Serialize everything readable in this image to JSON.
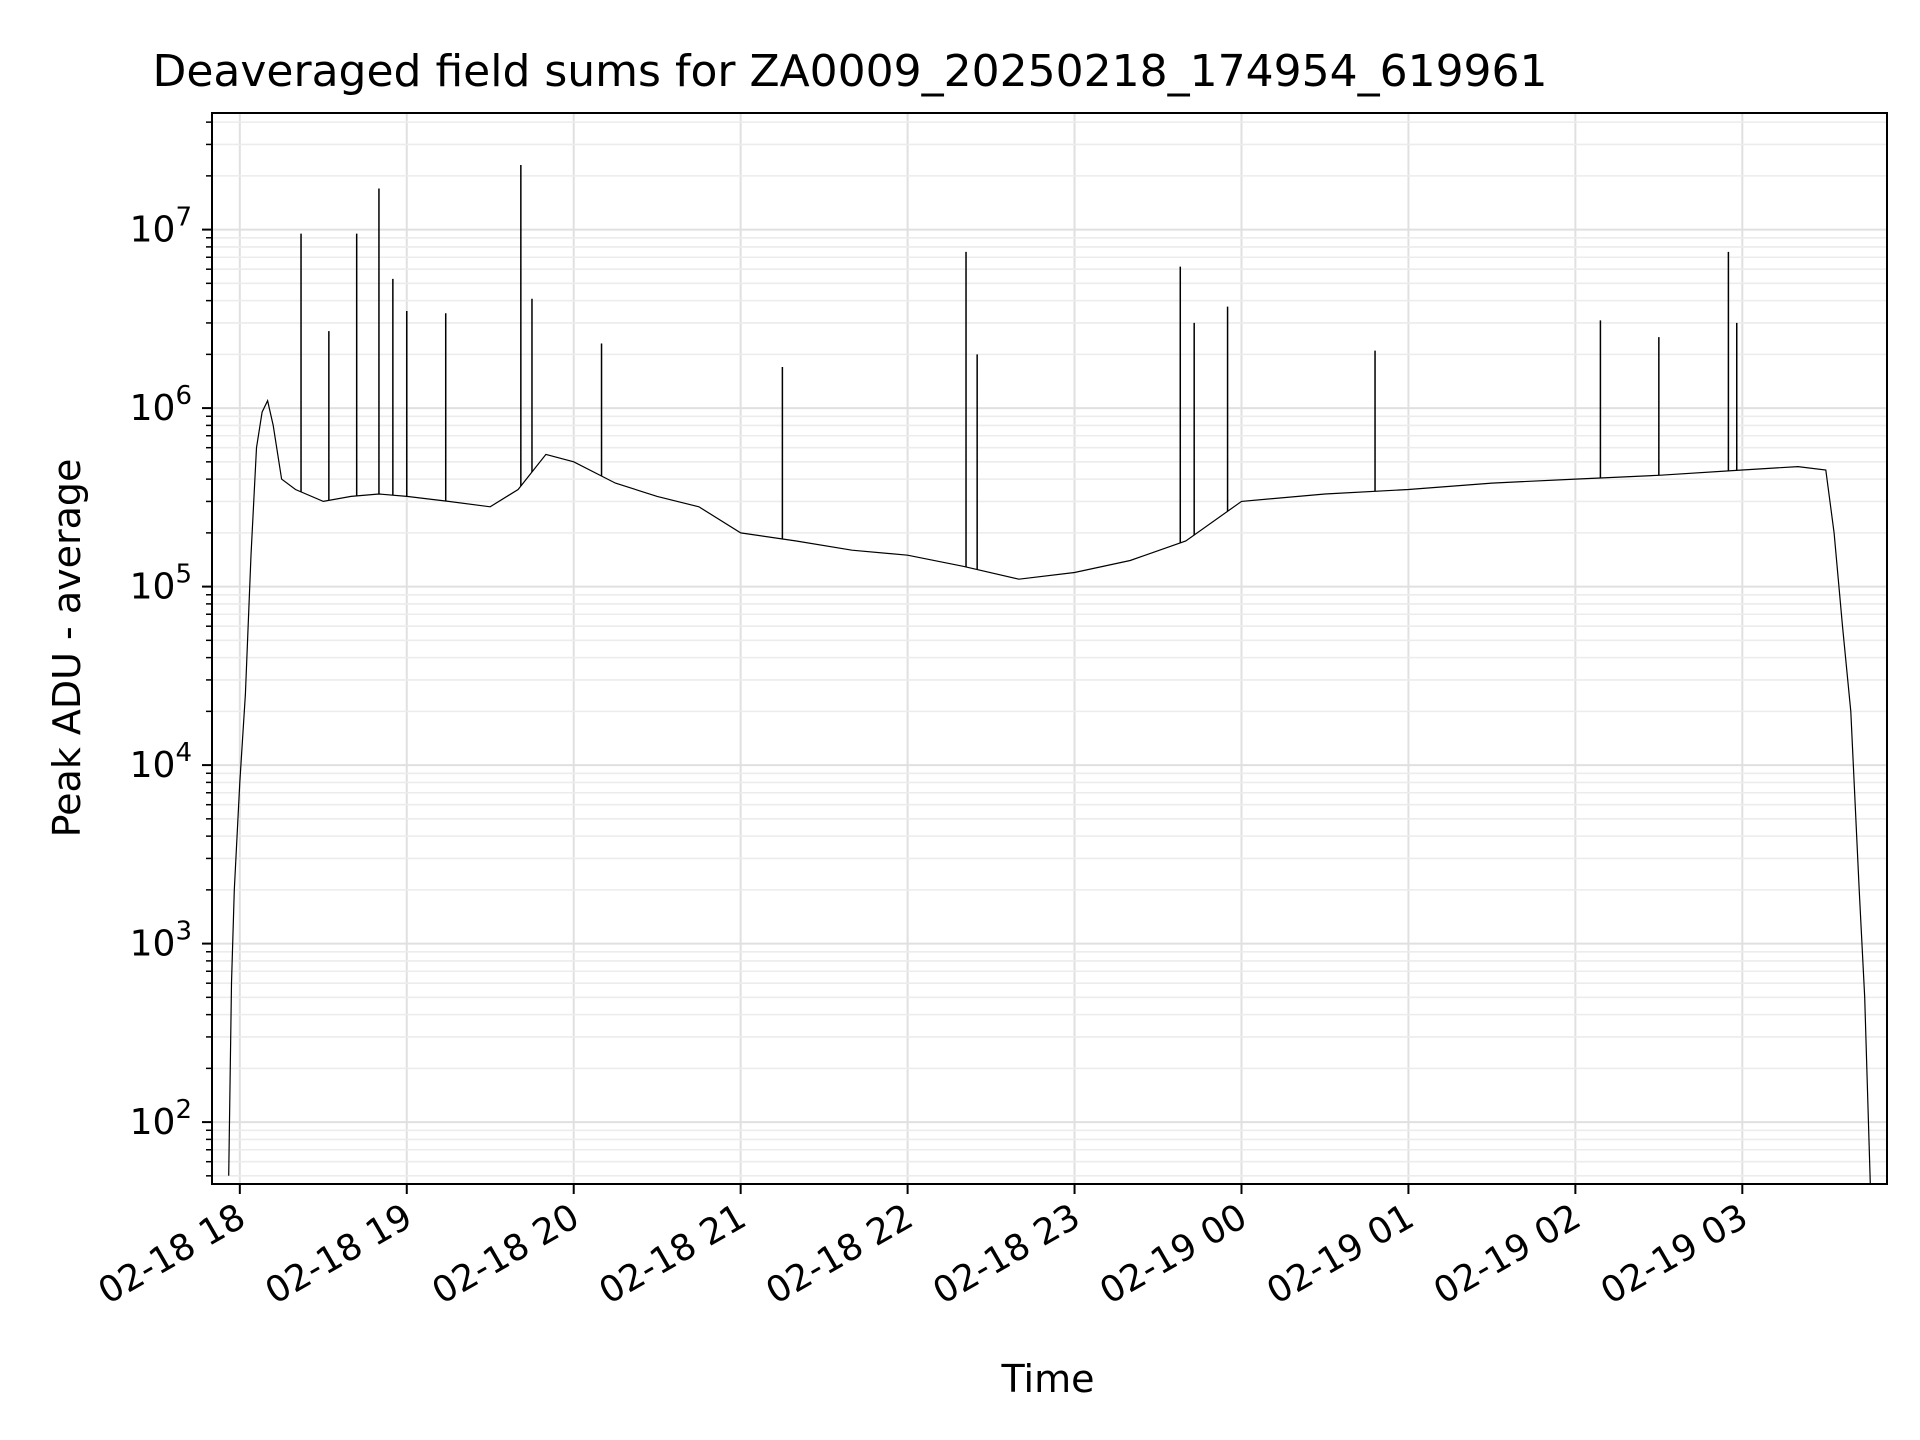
{
  "chart_data": {
    "type": "line",
    "title": "Deaveraged field sums for ZA0009_20250218_174954_619961",
    "xlabel": "Time",
    "ylabel": "Peak ADU - average",
    "yscale": "log",
    "ylim": [
      45,
      45000000
    ],
    "xlim": [
      "2025-02-18 17:50",
      "2025-02-19 03:52"
    ],
    "grid": "major and minor, light gray",
    "line_color": "#000000",
    "x_ticks": [
      {
        "label": "02-18 18",
        "time": "2025-02-18 18:00"
      },
      {
        "label": "02-18 19",
        "time": "2025-02-18 19:00"
      },
      {
        "label": "02-18 20",
        "time": "2025-02-18 20:00"
      },
      {
        "label": "02-18 21",
        "time": "2025-02-18 21:00"
      },
      {
        "label": "02-18 22",
        "time": "2025-02-18 22:00"
      },
      {
        "label": "02-18 23",
        "time": "2025-02-18 23:00"
      },
      {
        "label": "02-19 00",
        "time": "2025-02-19 00:00"
      },
      {
        "label": "02-19 01",
        "time": "2025-02-19 01:00"
      },
      {
        "label": "02-19 02",
        "time": "2025-02-19 02:00"
      },
      {
        "label": "02-19 03",
        "time": "2025-02-19 03:00"
      }
    ],
    "y_ticks": [
      {
        "base": "10",
        "exp": "2",
        "value": 100
      },
      {
        "base": "10",
        "exp": "3",
        "value": 1000
      },
      {
        "base": "10",
        "exp": "4",
        "value": 10000
      },
      {
        "base": "10",
        "exp": "5",
        "value": 100000
      },
      {
        "base": "10",
        "exp": "6",
        "value": 1000000
      },
      {
        "base": "10",
        "exp": "7",
        "value": 10000000
      }
    ],
    "series": [
      {
        "x": [
          "2025-02-18 17:56",
          "2025-02-18 17:57",
          "2025-02-18 17:58",
          "2025-02-18 18:00",
          "2025-02-18 18:02",
          "2025-02-18 18:04",
          "2025-02-18 18:06",
          "2025-02-18 18:08",
          "2025-02-18 18:10",
          "2025-02-18 18:12",
          "2025-02-18 18:15",
          "2025-02-18 18:20",
          "2025-02-18 18:30",
          "2025-02-18 18:40",
          "2025-02-18 18:50",
          "2025-02-18 19:00",
          "2025-02-18 19:15",
          "2025-02-18 19:30",
          "2025-02-18 19:40",
          "2025-02-18 19:50",
          "2025-02-18 20:00",
          "2025-02-18 20:15",
          "2025-02-18 20:30",
          "2025-02-18 20:45",
          "2025-02-18 21:00",
          "2025-02-18 21:20",
          "2025-02-18 21:40",
          "2025-02-18 22:00",
          "2025-02-18 22:20",
          "2025-02-18 22:40",
          "2025-02-18 23:00",
          "2025-02-18 23:20",
          "2025-02-18 23:40",
          "2025-02-19 00:00",
          "2025-02-19 00:30",
          "2025-02-19 01:00",
          "2025-02-19 01:30",
          "2025-02-19 02:00",
          "2025-02-19 02:30",
          "2025-02-19 03:00",
          "2025-02-19 03:20",
          "2025-02-19 03:30",
          "2025-02-19 03:33",
          "2025-02-19 03:36",
          "2025-02-19 03:39",
          "2025-02-19 03:42",
          "2025-02-19 03:44",
          "2025-02-19 03:46"
        ],
        "values": [
          50,
          600,
          2000,
          8000,
          25000,
          150000,
          600000,
          950000,
          1100000,
          800000,
          400000,
          350000,
          300000,
          320000,
          330000,
          320000,
          300000,
          280000,
          350000,
          550000,
          500000,
          380000,
          320000,
          280000,
          200000,
          180000,
          160000,
          150000,
          130000,
          110000,
          120000,
          140000,
          180000,
          300000,
          330000,
          350000,
          380000,
          400000,
          420000,
          450000,
          470000,
          450000,
          200000,
          60000,
          20000,
          2000,
          500,
          45
        ]
      }
    ],
    "spikes": [
      {
        "x": "2025-02-18 18:22",
        "value": 9500000
      },
      {
        "x": "2025-02-18 18:32",
        "value": 2700000
      },
      {
        "x": "2025-02-18 18:42",
        "value": 9500000
      },
      {
        "x": "2025-02-18 18:50",
        "value": 17000000
      },
      {
        "x": "2025-02-18 18:55",
        "value": 5300000
      },
      {
        "x": "2025-02-18 19:00",
        "value": 3500000
      },
      {
        "x": "2025-02-18 19:14",
        "value": 3400000
      },
      {
        "x": "2025-02-18 19:41",
        "value": 23000000
      },
      {
        "x": "2025-02-18 19:45",
        "value": 4100000
      },
      {
        "x": "2025-02-18 20:10",
        "value": 2300000
      },
      {
        "x": "2025-02-18 21:15",
        "value": 1700000
      },
      {
        "x": "2025-02-18 22:21",
        "value": 7500000
      },
      {
        "x": "2025-02-18 22:25",
        "value": 2000000
      },
      {
        "x": "2025-02-18 23:38",
        "value": 6200000
      },
      {
        "x": "2025-02-18 23:43",
        "value": 3000000
      },
      {
        "x": "2025-02-18 23:55",
        "value": 3700000
      },
      {
        "x": "2025-02-19 00:48",
        "value": 2100000
      },
      {
        "x": "2025-02-19 02:09",
        "value": 3100000
      },
      {
        "x": "2025-02-19 02:30",
        "value": 2500000
      },
      {
        "x": "2025-02-19 02:55",
        "value": 7500000
      },
      {
        "x": "2025-02-19 02:58",
        "value": 3000000
      }
    ]
  }
}
